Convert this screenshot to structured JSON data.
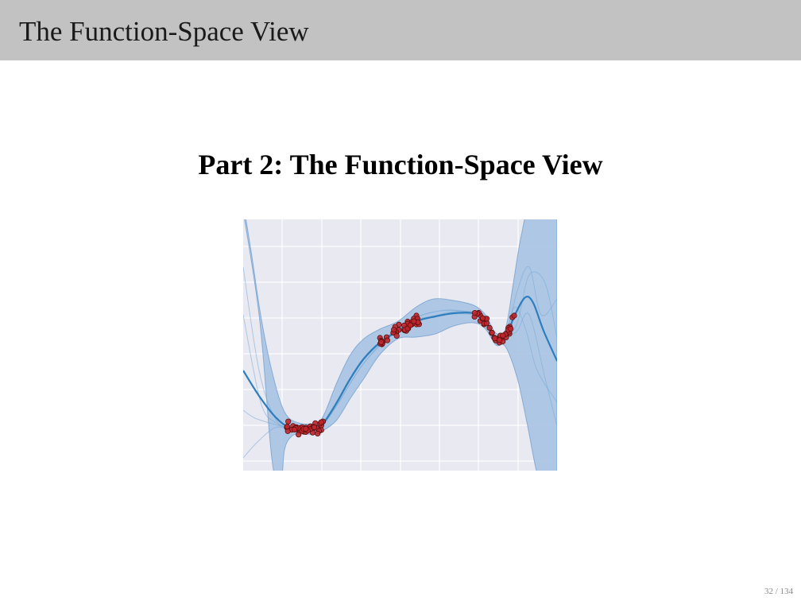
{
  "header": {
    "title": "The Function-Space View"
  },
  "slide": {
    "part_title": "Part 2: The Function-Space View"
  },
  "figure": {
    "colors": {
      "background": "#e9e9f1",
      "grid": "#ffffff",
      "band": "#a7c3e3",
      "band_edge": "#5b8fc6",
      "samples": "#7aa9d6",
      "mean": "#2e7ebd",
      "points": "#c0272d",
      "point_edge": "#5a1010"
    }
  },
  "footer": {
    "page_number": "32 / 134"
  }
}
